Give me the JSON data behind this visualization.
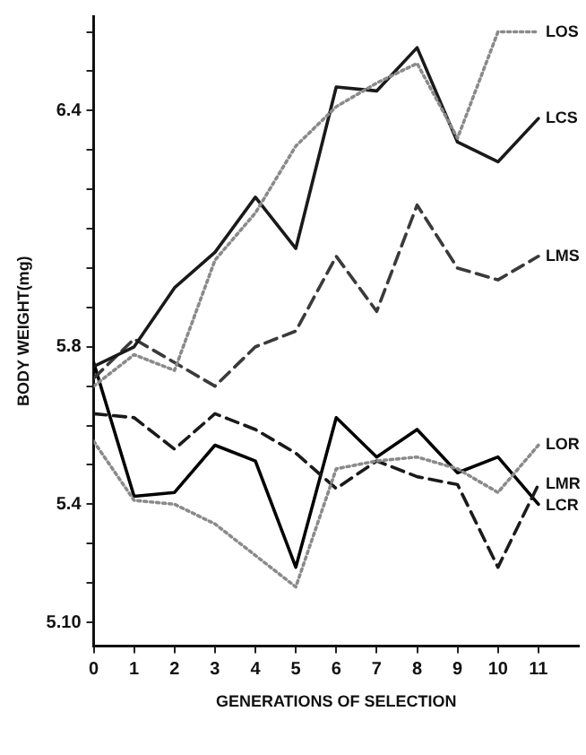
{
  "chart_data": {
    "type": "line",
    "xlabel": "GENERATIONS OF SELECTION",
    "ylabel": "BODY WEIGHT(mg)",
    "x": [
      0,
      1,
      2,
      3,
      4,
      5,
      6,
      7,
      8,
      9,
      10,
      11
    ],
    "xlim": [
      0,
      12
    ],
    "xticks": [
      0,
      1,
      2,
      3,
      4,
      5,
      6,
      7,
      8,
      9,
      10,
      11
    ],
    "ylim": [
      5.04,
      6.64
    ],
    "yticks": [
      {
        "value": 5.1,
        "label": "5.10"
      },
      {
        "value": 5.2,
        "label": null
      },
      {
        "value": 5.3,
        "label": null
      },
      5.4,
      {
        "value": 5.5,
        "label": null
      },
      {
        "value": 5.6,
        "label": null
      },
      {
        "value": 5.7,
        "label": null
      },
      5.8,
      {
        "value": 5.9,
        "label": null
      },
      {
        "value": 6.0,
        "label": null
      },
      {
        "value": 6.1,
        "label": null
      },
      {
        "value": 6.2,
        "label": null
      },
      {
        "value": 6.3,
        "label": null
      },
      6.4,
      {
        "value": 6.5,
        "label": null
      },
      {
        "value": 6.6,
        "label": null
      }
    ],
    "grid": false,
    "legend": false,
    "marker": "none",
    "series": [
      {
        "name": "LOS",
        "color": "#8a8a8a",
        "line_style": "dotted",
        "values": [
          5.7,
          5.78,
          5.74,
          6.02,
          6.14,
          6.31,
          6.41,
          6.47,
          6.52,
          6.33,
          6.6,
          6.6
        ]
      },
      {
        "name": "LCS",
        "color": "#1a1a1a",
        "line_style": "solid",
        "values": [
          5.75,
          5.8,
          5.95,
          6.04,
          6.18,
          6.05,
          6.46,
          6.45,
          6.56,
          6.32,
          6.27,
          6.38
        ]
      },
      {
        "name": "LMS",
        "color": "#3a3a3a",
        "line_style": "dashed",
        "values": [
          5.72,
          5.82,
          5.76,
          5.7,
          5.8,
          5.84,
          6.03,
          5.89,
          6.16,
          6.0,
          5.97,
          6.03
        ]
      },
      {
        "name": "LOR",
        "color": "#8a8a8a",
        "line_style": "dotted",
        "values": [
          5.56,
          5.41,
          5.4,
          5.35,
          5.27,
          5.19,
          5.49,
          5.51,
          5.52,
          5.49,
          5.43,
          5.55
        ]
      },
      {
        "name": "LMR",
        "color": "#1a1a1a",
        "line_style": "dashed",
        "values": [
          5.63,
          5.62,
          5.54,
          5.63,
          5.59,
          5.53,
          5.44,
          5.51,
          5.47,
          5.45,
          5.24,
          5.45
        ]
      },
      {
        "name": "LCR",
        "color": "#000000",
        "line_style": "solid",
        "values": [
          5.76,
          5.42,
          5.43,
          5.55,
          5.51,
          5.24,
          5.62,
          5.52,
          5.59,
          5.48,
          5.52,
          5.4
        ]
      }
    ]
  }
}
